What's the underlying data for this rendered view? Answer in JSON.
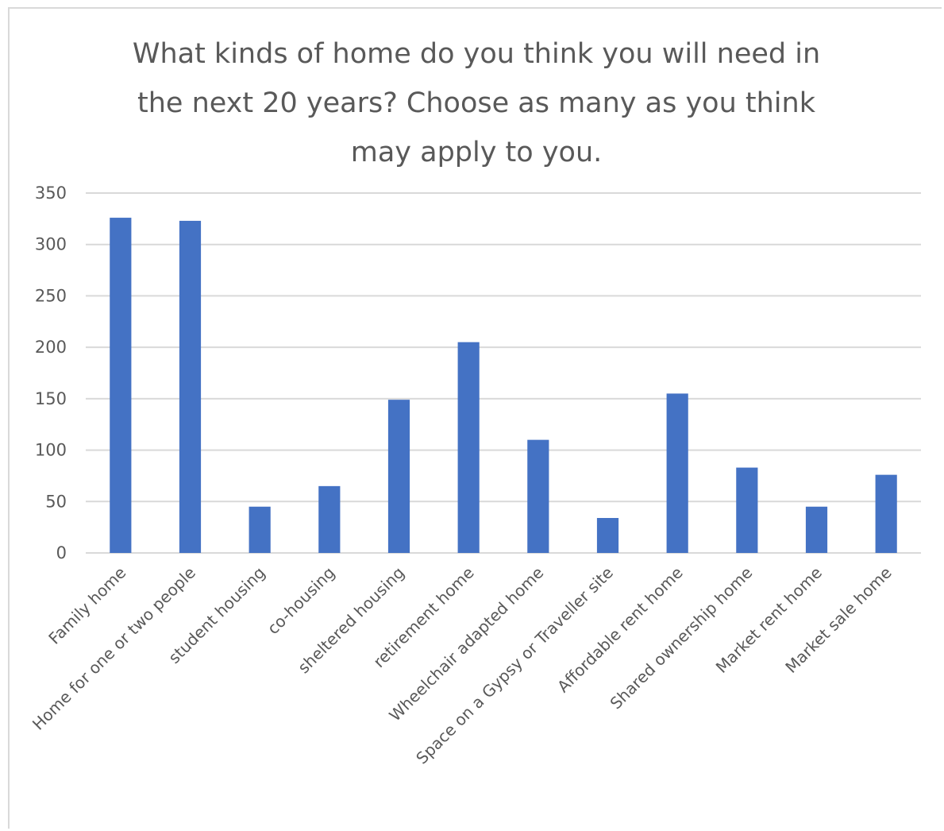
{
  "chart_data": {
    "type": "bar",
    "title": "What kinds of home do you think you will need in\nthe next 20 years? Choose as many as you think\nmay apply to you.",
    "xlabel": "",
    "ylabel": "",
    "categories": [
      "Family home",
      "Home for one or two people",
      "student housing",
      "co-housing",
      "sheltered housing",
      "retirement home",
      "Wheelchair adapted home",
      "Space on a Gypsy or Traveller site",
      "Affordable rent home",
      "Shared ownership home",
      "Market rent home",
      "Market sale home"
    ],
    "series": [
      {
        "values": [
          326,
          323,
          45,
          65,
          149,
          205,
          110,
          34,
          155,
          83,
          45,
          76
        ],
        "color": "#4472c4"
      }
    ],
    "ylim": [
      0,
      350
    ],
    "yticks": [
      "0",
      "50",
      "100",
      "150",
      "200",
      "250",
      "300",
      "350"
    ],
    "grid": true,
    "legend": "none",
    "colors": {
      "bar": "#4472c4",
      "grid": "#d9d9d9",
      "text": "#595959"
    }
  }
}
